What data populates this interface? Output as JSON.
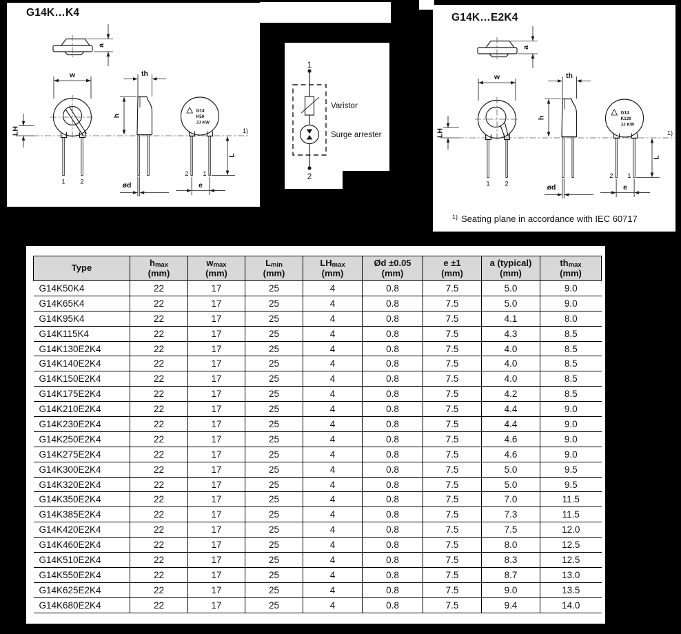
{
  "colors": {
    "page_bg": "#000000",
    "panel_bg": "#ffffff",
    "line": "#1a1a1a",
    "header_bg": "#d8d8d8"
  },
  "panels": {
    "left_drawing": {
      "title": "G14K…K4",
      "disc": {
        "l1": "G14",
        "l2": "K50",
        "l3": "JJ KW"
      }
    },
    "right_drawing": {
      "title": "G14K…E2K4",
      "disc": {
        "l1": "G14",
        "l2": "K130",
        "l3": "JJ KW"
      },
      "footnote": {
        "ref": "1)",
        "text": "Seating plane in accordance with IEC 60717"
      }
    },
    "symbol": {
      "top_terminal": "1",
      "bottom_terminal": "2",
      "varistor": "Varistor",
      "surge_arrester": "Surge arrester"
    }
  },
  "dims": {
    "a": "a",
    "w": "w",
    "th": "th",
    "h": "h",
    "lh": "LH",
    "l": "L",
    "od": "ød",
    "e": "e",
    "pin1": "1",
    "pin2": "2",
    "seating_ref": "1)"
  },
  "table": {
    "headers": [
      {
        "main": "Type",
        "sub": "",
        "unit": ""
      },
      {
        "main": "h",
        "sub": "max",
        "unit": "(mm)"
      },
      {
        "main": "w",
        "sub": "max",
        "unit": "(mm)"
      },
      {
        "main": "L",
        "sub": "min",
        "unit": "(mm)"
      },
      {
        "main": "LH",
        "sub": "max",
        "unit": "(mm)"
      },
      {
        "main": "Ød ±0.05",
        "sub": "",
        "unit": "(mm)"
      },
      {
        "main": "e ±1",
        "sub": "",
        "unit": "(mm)"
      },
      {
        "main": "a (typical)",
        "sub": "",
        "unit": "(mm)"
      },
      {
        "main": "th",
        "sub": "max",
        "unit": "(mm)"
      }
    ],
    "rows": [
      [
        "G14K50K4",
        "22",
        "17",
        "25",
        "4",
        "0.8",
        "7.5",
        "5.0",
        "9.0"
      ],
      [
        "G14K65K4",
        "22",
        "17",
        "25",
        "4",
        "0.8",
        "7.5",
        "5.0",
        "9.0"
      ],
      [
        "G14K95K4",
        "22",
        "17",
        "25",
        "4",
        "0.8",
        "7.5",
        "4.1",
        "8.0"
      ],
      [
        "G14K115K4",
        "22",
        "17",
        "25",
        "4",
        "0.8",
        "7.5",
        "4.3",
        "8.5"
      ],
      [
        "G14K130E2K4",
        "22",
        "17",
        "25",
        "4",
        "0.8",
        "7.5",
        "4.0",
        "8.5"
      ],
      [
        "G14K140E2K4",
        "22",
        "17",
        "25",
        "4",
        "0.8",
        "7.5",
        "4.0",
        "8.5"
      ],
      [
        "G14K150E2K4",
        "22",
        "17",
        "25",
        "4",
        "0.8",
        "7.5",
        "4.0",
        "8.5"
      ],
      [
        "G14K175E2K4",
        "22",
        "17",
        "25",
        "4",
        "0.8",
        "7.5",
        "4.2",
        "8.5"
      ],
      [
        "G14K210E2K4",
        "22",
        "17",
        "25",
        "4",
        "0.8",
        "7.5",
        "4.4",
        "9.0"
      ],
      [
        "G14K230E2K4",
        "22",
        "17",
        "25",
        "4",
        "0.8",
        "7.5",
        "4.4",
        "9.0"
      ],
      [
        "G14K250E2K4",
        "22",
        "17",
        "25",
        "4",
        "0.8",
        "7.5",
        "4.6",
        "9.0"
      ],
      [
        "G14K275E2K4",
        "22",
        "17",
        "25",
        "4",
        "0.8",
        "7.5",
        "4.6",
        "9.0"
      ],
      [
        "G14K300E2K4",
        "22",
        "17",
        "25",
        "4",
        "0.8",
        "7.5",
        "5.0",
        "9.5"
      ],
      [
        "G14K320E2K4",
        "22",
        "17",
        "25",
        "4",
        "0.8",
        "7.5",
        "5.0",
        "9.5"
      ],
      [
        "G14K350E2K4",
        "22",
        "17",
        "25",
        "4",
        "0.8",
        "7.5",
        "7.0",
        "11.5"
      ],
      [
        "G14K385E2K4",
        "22",
        "17",
        "25",
        "4",
        "0.8",
        "7.5",
        "7.3",
        "11.5"
      ],
      [
        "G14K420E2K4",
        "22",
        "17",
        "25",
        "4",
        "0.8",
        "7.5",
        "7.5",
        "12.0"
      ],
      [
        "G14K460E2K4",
        "22",
        "17",
        "25",
        "4",
        "0.8",
        "7.5",
        "8.0",
        "12.5"
      ],
      [
        "G14K510E2K4",
        "22",
        "17",
        "25",
        "4",
        "0.8",
        "7.5",
        "8.3",
        "12.5"
      ],
      [
        "G14K550E2K4",
        "22",
        "17",
        "25",
        "4",
        "0.8",
        "7.5",
        "8.7",
        "13.0"
      ],
      [
        "G14K625E2K4",
        "22",
        "17",
        "25",
        "4",
        "0.8",
        "7.5",
        "9.0",
        "13.5"
      ],
      [
        "G14K680E2K4",
        "22",
        "17",
        "25",
        "4",
        "0.8",
        "7.5",
        "9.4",
        "14.0"
      ]
    ]
  }
}
